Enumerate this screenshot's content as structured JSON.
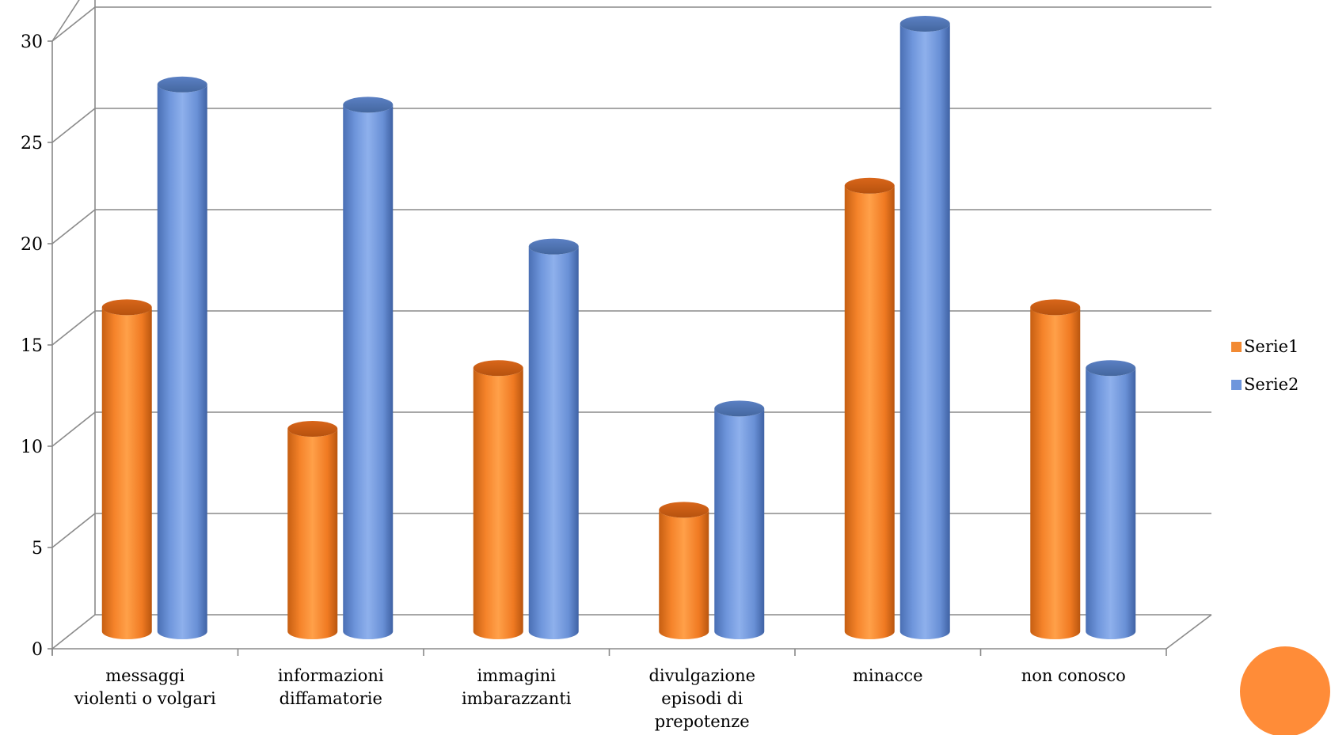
{
  "chart_data": {
    "type": "bar",
    "title": "",
    "xlabel": "",
    "ylabel": "",
    "ylim": [
      0,
      30
    ],
    "yticks": [
      0,
      5,
      10,
      15,
      20,
      25,
      30
    ],
    "grid": true,
    "legend_position": "right",
    "style": "3d-cylinder",
    "categories": [
      [
        "messaggi",
        "violenti o volgari"
      ],
      [
        "informazioni",
        "diffamatorie"
      ],
      [
        "immagini",
        "imbarazzanti"
      ],
      [
        "divulgazione",
        "episodi di",
        "prepotenze"
      ],
      [
        "minacce"
      ],
      [
        "non conosco"
      ]
    ],
    "series": [
      {
        "name": "Serie1",
        "color": "#F28A33",
        "values": [
          16,
          10,
          13,
          6,
          22,
          16
        ]
      },
      {
        "name": "Serie2",
        "color": "#6F96DC",
        "values": [
          27,
          26,
          19,
          11,
          30,
          13
        ]
      }
    ]
  },
  "decoration": {
    "circle_color": "#FF8C38"
  }
}
